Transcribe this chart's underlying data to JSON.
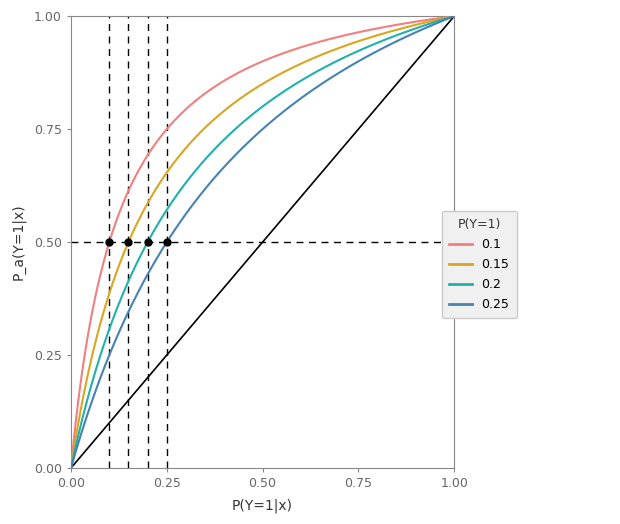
{
  "priors": [
    0.1,
    0.15,
    0.2,
    0.25
  ],
  "colors": [
    "#F08080",
    "#DAA520",
    "#20B2AA",
    "#4682B4"
  ],
  "legend_title": "P(Y=1)",
  "xlabel": "P(Y=1|x)",
  "ylabel": "P_a(Y=1|x)",
  "xlim": [
    0.0,
    1.0
  ],
  "ylim": [
    0.0,
    1.0
  ],
  "xticks": [
    0.0,
    0.25,
    0.5,
    0.75,
    1.0
  ],
  "yticks": [
    0.0,
    0.25,
    0.5,
    0.75,
    1.0
  ],
  "xticklabels": [
    "0.00",
    "0.25",
    "0.50",
    "0.75",
    "1.00"
  ],
  "yticklabels": [
    "0.00",
    "0.25",
    "0.50",
    "0.75",
    "1.00"
  ],
  "hline_y": 0.5,
  "background_color": "#ffffff",
  "figsize": [
    6.2,
    5.24
  ],
  "dpi": 100,
  "legend_labels": [
    "0.1",
    "0.15",
    "0.2",
    "0.25"
  ]
}
